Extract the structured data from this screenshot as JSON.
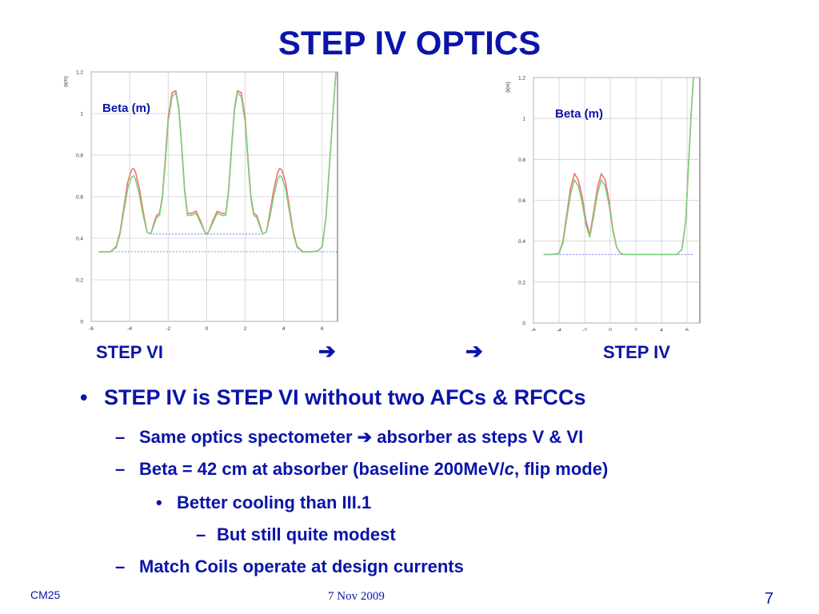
{
  "slide": {
    "title": "STEP IV OPTICS",
    "step_left": "STEP VI",
    "arrow1": "➔",
    "arrow2": "➔",
    "step_right": "STEP IV",
    "footer_left": "CM25",
    "footer_date": "7 Nov 2009",
    "page_number": "7"
  },
  "bullets": [
    {
      "level": 1,
      "marker": "•",
      "text": "STEP IV is STEP VI without two AFCs & RFCCs"
    },
    {
      "level": 2,
      "marker": "–",
      "text": "Same optics spectometer ➔ absorber as steps V & VI"
    },
    {
      "level": 2,
      "marker": "–",
      "text_before": "Beta = 42 cm at absorber (baseline 200MeV/",
      "text_italic": "c",
      "text_after": ", flip mode)"
    },
    {
      "level": 3,
      "marker": "•",
      "text": "Better cooling than III.1"
    },
    {
      "level": 4,
      "marker": "–",
      "text": "But still quite modest"
    },
    {
      "level": 2,
      "marker": "–",
      "text": "Match Coils operate at design currents"
    }
  ],
  "chart_data": [
    {
      "type": "line",
      "annotation": "Beta (m)",
      "ylabel": "β(m)",
      "xlim": [
        -6,
        6.8
      ],
      "ylim": [
        0,
        1.2
      ],
      "xticks": [
        "-6",
        "-4",
        "-2",
        "0",
        "2",
        "4",
        "6"
      ],
      "yticks": [
        "0",
        "0.2",
        "0.4",
        "0.6",
        "0.8",
        "1",
        "1.2"
      ],
      "grid": true,
      "colors": {
        "series1": "#f07070",
        "series2": "#7ed07e",
        "ref": "#6060f0"
      },
      "reference_lines": [
        {
          "y": 0.42,
          "x_start": -2.8,
          "x_end": 2.8
        },
        {
          "y": 0.335,
          "x_start": -5.6,
          "x_end": 6.8
        }
      ],
      "series": [
        {
          "x": [
            -5.6,
            -5.0,
            -4.7,
            -4.5,
            -4.3,
            -4.1,
            -3.9,
            -3.8,
            -3.7,
            -3.5,
            -3.3,
            -3.1,
            -2.9,
            -2.75,
            -2.6,
            -2.45,
            -2.3,
            -2.15,
            -2.0,
            -1.8,
            -1.6,
            -1.45,
            -1.3,
            -1.15,
            -1.0,
            -0.8,
            -0.55,
            -0.3,
            -0.1,
            0.0,
            0.1,
            0.3,
            0.55,
            0.8,
            1.0,
            1.15,
            1.3,
            1.45,
            1.6,
            1.8,
            2.0,
            2.15,
            2.3,
            2.45,
            2.6,
            2.75,
            2.9,
            3.1,
            3.3,
            3.5,
            3.7,
            3.8,
            3.9,
            4.1,
            4.3,
            4.5,
            4.7,
            5.0,
            5.5,
            5.8,
            6.0,
            6.2,
            6.4,
            6.6,
            6.8
          ],
          "y": [
            0.335,
            0.335,
            0.36,
            0.43,
            0.55,
            0.67,
            0.73,
            0.735,
            0.72,
            0.64,
            0.53,
            0.43,
            0.42,
            0.47,
            0.51,
            0.52,
            0.6,
            0.78,
            0.98,
            1.1,
            1.11,
            1.03,
            0.85,
            0.64,
            0.52,
            0.52,
            0.53,
            0.48,
            0.43,
            0.42,
            0.43,
            0.48,
            0.53,
            0.52,
            0.52,
            0.64,
            0.85,
            1.03,
            1.11,
            1.1,
            0.98,
            0.78,
            0.6,
            0.52,
            0.51,
            0.47,
            0.42,
            0.43,
            0.53,
            0.64,
            0.72,
            0.735,
            0.73,
            0.67,
            0.55,
            0.43,
            0.36,
            0.335,
            0.335,
            0.34,
            0.36,
            0.5,
            0.78,
            1.05,
            1.3
          ]
        },
        {
          "x": [
            -5.6,
            -5.0,
            -4.7,
            -4.5,
            -4.3,
            -4.1,
            -3.9,
            -3.8,
            -3.7,
            -3.5,
            -3.3,
            -3.1,
            -2.9,
            -2.75,
            -2.6,
            -2.45,
            -2.3,
            -2.15,
            -2.0,
            -1.8,
            -1.6,
            -1.45,
            -1.3,
            -1.15,
            -1.0,
            -0.8,
            -0.55,
            -0.3,
            -0.1,
            0.0,
            0.1,
            0.3,
            0.55,
            0.8,
            1.0,
            1.15,
            1.3,
            1.45,
            1.6,
            1.8,
            2.0,
            2.15,
            2.3,
            2.45,
            2.6,
            2.75,
            2.9,
            3.1,
            3.3,
            3.5,
            3.7,
            3.8,
            3.9,
            4.1,
            4.3,
            4.5,
            4.7,
            5.0,
            5.5,
            5.8,
            6.0,
            6.2,
            6.4,
            6.6,
            6.8
          ],
          "y": [
            0.335,
            0.335,
            0.355,
            0.42,
            0.53,
            0.64,
            0.695,
            0.7,
            0.685,
            0.61,
            0.51,
            0.43,
            0.42,
            0.46,
            0.5,
            0.51,
            0.59,
            0.76,
            0.96,
            1.08,
            1.1,
            1.02,
            0.84,
            0.63,
            0.51,
            0.51,
            0.52,
            0.47,
            0.43,
            0.42,
            0.43,
            0.47,
            0.52,
            0.51,
            0.51,
            0.63,
            0.84,
            1.02,
            1.1,
            1.08,
            0.96,
            0.76,
            0.59,
            0.51,
            0.5,
            0.46,
            0.42,
            0.43,
            0.51,
            0.61,
            0.685,
            0.7,
            0.695,
            0.64,
            0.53,
            0.42,
            0.355,
            0.335,
            0.335,
            0.34,
            0.36,
            0.5,
            0.78,
            1.05,
            1.3
          ]
        }
      ]
    },
    {
      "type": "line",
      "annotation": "Beta (m)",
      "ylabel": "β(m)",
      "xlim": [
        -6,
        7
      ],
      "ylim": [
        0,
        1.2
      ],
      "xticks": [
        "-6",
        "-4",
        "-2",
        "0",
        "2",
        "4",
        "6"
      ],
      "yticks": [
        "0",
        "0.2",
        "0.4",
        "0.6",
        "0.8",
        "1",
        "1.2"
      ],
      "grid": true,
      "colors": {
        "series1": "#f07070",
        "series2": "#7ed07e",
        "ref": "#6060f0"
      },
      "reference_lines": [
        {
          "y": 0.335,
          "x_start": -5.2,
          "x_end": 6.5
        }
      ],
      "series": [
        {
          "x": [
            -5.2,
            -4.5,
            -4.0,
            -3.7,
            -3.4,
            -3.1,
            -2.8,
            -2.5,
            -2.2,
            -1.9,
            -1.6,
            -1.3,
            -1.0,
            -0.7,
            -0.4,
            -0.1,
            0.2,
            0.5,
            0.8,
            1.1,
            1.4,
            1.7,
            2.0,
            2.3,
            2.6,
            3.0,
            3.5,
            4.5,
            5.2,
            5.6,
            5.9,
            6.1,
            6.3,
            6.5
          ],
          "y": [
            0.335,
            0.335,
            0.34,
            0.4,
            0.53,
            0.66,
            0.73,
            0.7,
            0.62,
            0.5,
            0.43,
            0.54,
            0.66,
            0.73,
            0.7,
            0.6,
            0.46,
            0.37,
            0.34,
            0.335,
            0.335,
            0.335,
            0.335,
            0.335,
            0.335,
            0.335,
            0.335,
            0.335,
            0.335,
            0.36,
            0.5,
            0.75,
            1.0,
            1.2
          ]
        },
        {
          "x": [
            -5.2,
            -4.5,
            -4.0,
            -3.7,
            -3.4,
            -3.1,
            -2.8,
            -2.5,
            -2.2,
            -1.9,
            -1.6,
            -1.3,
            -1.0,
            -0.7,
            -0.4,
            -0.1,
            0.2,
            0.5,
            0.8,
            1.1,
            1.4,
            1.7,
            2.0,
            2.3,
            2.6,
            3.0,
            3.5,
            4.5,
            5.2,
            5.6,
            5.9,
            6.1,
            6.3,
            6.5
          ],
          "y": [
            0.335,
            0.335,
            0.34,
            0.39,
            0.51,
            0.63,
            0.7,
            0.67,
            0.59,
            0.48,
            0.42,
            0.52,
            0.63,
            0.7,
            0.67,
            0.58,
            0.45,
            0.37,
            0.34,
            0.335,
            0.335,
            0.335,
            0.335,
            0.335,
            0.335,
            0.335,
            0.335,
            0.335,
            0.335,
            0.36,
            0.5,
            0.75,
            1.0,
            1.2
          ]
        }
      ]
    }
  ]
}
